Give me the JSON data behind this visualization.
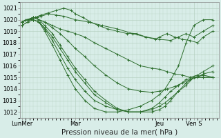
{
  "background_color": "#d8ede8",
  "grid_color": "#b0ccbb",
  "line_color": "#2d6e2d",
  "ylim": [
    1011.5,
    1021.5
  ],
  "yticks": [
    1012,
    1013,
    1014,
    1015,
    1016,
    1017,
    1018,
    1019,
    1020,
    1021
  ],
  "xlabel": "Pression niveau de la mer( hPa )",
  "xlabel_fontsize": 7.5,
  "tick_fontsize": 6,
  "xtick_labels": [
    "LunMer",
    "Mar",
    "Jeu",
    "Ven S"
  ],
  "xtick_positions": [
    0.0,
    0.28,
    0.72,
    0.9
  ],
  "lines": [
    {
      "x": [
        0.0,
        0.02,
        0.05,
        0.08,
        0.1,
        0.14,
        0.18,
        0.22,
        0.28,
        0.35,
        0.42,
        0.5,
        0.58,
        0.65,
        0.72,
        0.78,
        0.82,
        0.86,
        0.9,
        0.95,
        1.0
      ],
      "y": [
        1019.8,
        1020.0,
        1020.1,
        1020.2,
        1020.3,
        1020.5,
        1020.4,
        1020.3,
        1020.0,
        1019.8,
        1019.5,
        1019.2,
        1018.8,
        1018.5,
        1018.3,
        1018.2,
        1018.5,
        1018.8,
        1018.5,
        1019.0,
        1019.5
      ]
    },
    {
      "x": [
        0.0,
        0.03,
        0.07,
        0.1,
        0.14,
        0.18,
        0.22,
        0.26,
        0.28,
        0.32,
        0.36,
        0.4,
        0.45,
        0.5,
        0.55,
        0.6,
        0.65,
        0.7,
        0.72,
        0.76,
        0.8,
        0.84,
        0.88,
        0.92,
        0.95,
        1.0
      ],
      "y": [
        1019.8,
        1020.0,
        1020.2,
        1020.4,
        1020.6,
        1020.8,
        1021.0,
        1020.8,
        1020.5,
        1020.2,
        1019.8,
        1019.5,
        1019.2,
        1019.0,
        1018.8,
        1018.8,
        1018.5,
        1018.3,
        1018.5,
        1018.8,
        1018.5,
        1018.3,
        1018.2,
        1018.0,
        1018.5,
        1019.0
      ]
    },
    {
      "x": [
        0.0,
        0.03,
        0.06,
        0.09,
        0.12,
        0.16,
        0.2,
        0.24,
        0.28,
        0.33,
        0.38,
        0.44,
        0.5,
        0.56,
        0.62,
        0.68,
        0.72,
        0.76,
        0.8,
        0.84,
        0.88,
        0.92,
        0.95,
        1.0
      ],
      "y": [
        1019.8,
        1020.0,
        1020.2,
        1020.0,
        1019.8,
        1019.5,
        1019.2,
        1019.0,
        1018.8,
        1018.5,
        1018.0,
        1017.5,
        1017.0,
        1016.5,
        1016.0,
        1015.8,
        1015.7,
        1015.5,
        1015.3,
        1015.2,
        1015.0,
        1015.2,
        1015.5,
        1016.0
      ]
    },
    {
      "x": [
        0.0,
        0.03,
        0.06,
        0.09,
        0.12,
        0.16,
        0.2,
        0.24,
        0.28,
        0.33,
        0.38,
        0.44,
        0.5,
        0.56,
        0.62,
        0.68,
        0.72,
        0.76,
        0.8,
        0.84,
        0.88,
        0.92,
        0.95,
        1.0
      ],
      "y": [
        1019.8,
        1020.0,
        1020.2,
        1020.0,
        1019.8,
        1019.3,
        1018.8,
        1018.2,
        1017.5,
        1016.8,
        1016.0,
        1015.2,
        1014.5,
        1014.0,
        1013.8,
        1013.7,
        1013.8,
        1014.0,
        1014.2,
        1014.5,
        1014.8,
        1015.0,
        1015.3,
        1015.5
      ]
    },
    {
      "x": [
        0.0,
        0.03,
        0.06,
        0.09,
        0.12,
        0.16,
        0.2,
        0.24,
        0.28,
        0.33,
        0.38,
        0.44,
        0.5,
        0.56,
        0.62,
        0.68,
        0.72,
        0.75,
        0.78,
        0.82,
        0.86,
        0.9,
        0.95,
        1.0
      ],
      "y": [
        1019.8,
        1020.0,
        1020.2,
        1020.0,
        1019.5,
        1018.8,
        1017.8,
        1016.8,
        1015.8,
        1014.8,
        1013.8,
        1013.0,
        1012.3,
        1012.0,
        1012.0,
        1012.0,
        1012.2,
        1012.5,
        1013.0,
        1013.8,
        1014.3,
        1015.0,
        1015.0,
        1015.0
      ]
    },
    {
      "x": [
        0.0,
        0.03,
        0.06,
        0.09,
        0.12,
        0.16,
        0.2,
        0.24,
        0.28,
        0.33,
        0.38,
        0.44,
        0.5,
        0.56,
        0.62,
        0.68,
        0.72,
        0.75,
        0.78,
        0.82,
        0.86,
        0.9,
        0.95,
        1.0
      ],
      "y": [
        1019.8,
        1020.0,
        1020.0,
        1019.8,
        1019.3,
        1018.5,
        1017.5,
        1016.5,
        1015.5,
        1014.5,
        1013.5,
        1012.8,
        1012.2,
        1012.0,
        1012.0,
        1012.2,
        1012.5,
        1012.8,
        1013.2,
        1013.8,
        1014.5,
        1015.0,
        1015.2,
        1015.0
      ]
    },
    {
      "x": [
        0.0,
        0.03,
        0.06,
        0.09,
        0.12,
        0.16,
        0.2,
        0.24,
        0.28,
        0.33,
        0.38,
        0.44,
        0.5,
        0.56,
        0.62,
        0.68,
        0.72,
        0.75,
        0.78,
        0.82,
        0.86,
        0.9,
        0.95,
        1.0
      ],
      "y": [
        1019.5,
        1019.8,
        1020.0,
        1019.8,
        1019.2,
        1018.2,
        1017.0,
        1015.8,
        1014.8,
        1013.8,
        1013.0,
        1012.5,
        1012.2,
        1012.0,
        1012.0,
        1012.3,
        1012.8,
        1013.3,
        1013.8,
        1014.3,
        1014.8,
        1015.0,
        1015.0,
        1015.0
      ]
    },
    {
      "x": [
        0.0,
        0.03,
        0.06,
        0.09,
        0.12,
        0.16,
        0.2,
        0.24,
        0.28,
        0.33,
        0.38,
        0.44,
        0.5,
        0.56,
        0.62,
        0.68,
        0.72,
        0.75,
        0.78,
        0.82,
        0.86,
        0.9,
        0.95,
        1.0
      ],
      "y": [
        1019.5,
        1019.8,
        1020.0,
        1019.8,
        1019.0,
        1017.8,
        1016.5,
        1015.2,
        1014.0,
        1013.0,
        1012.3,
        1012.0,
        1012.0,
        1012.2,
        1012.5,
        1013.0,
        1013.5,
        1014.0,
        1014.8,
        1016.0,
        1018.0,
        1019.5,
        1020.0,
        1020.0
      ]
    }
  ]
}
